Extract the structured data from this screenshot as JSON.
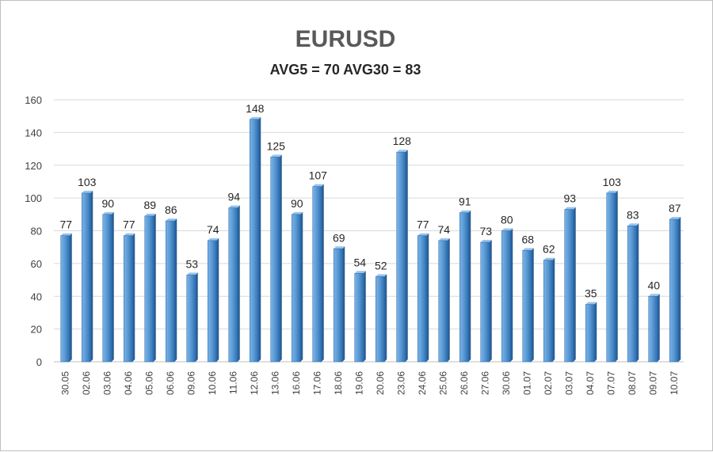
{
  "chart_data": {
    "type": "bar",
    "title": "EURUSD",
    "subtitle": "AVG5 = 70 AVG30 = 83",
    "xlabel": "",
    "ylabel": "",
    "categories": [
      "30.05",
      "02.06",
      "03.06",
      "04.06",
      "05.06",
      "06.06",
      "09.06",
      "10.06",
      "11.06",
      "12.06",
      "13.06",
      "16.06",
      "17.06",
      "18.06",
      "19.06",
      "20.06",
      "23.06",
      "24.06",
      "25.06",
      "26.06",
      "27.06",
      "30.06",
      "01.07",
      "02.07",
      "03.07",
      "04.07",
      "07.07",
      "08.07",
      "09.07",
      "10.07"
    ],
    "values": [
      77,
      103,
      90,
      77,
      89,
      86,
      53,
      74,
      94,
      148,
      125,
      90,
      107,
      69,
      54,
      52,
      128,
      77,
      74,
      91,
      73,
      80,
      68,
      62,
      93,
      35,
      103,
      83,
      40,
      87
    ],
    "ylim": [
      0,
      160
    ],
    "yticks": [
      0,
      20,
      40,
      60,
      80,
      100,
      120,
      140,
      160
    ],
    "grid": true,
    "legend": "none",
    "bar_color": "#5b9bd5",
    "bar_edge_color": "#2e75b6"
  }
}
